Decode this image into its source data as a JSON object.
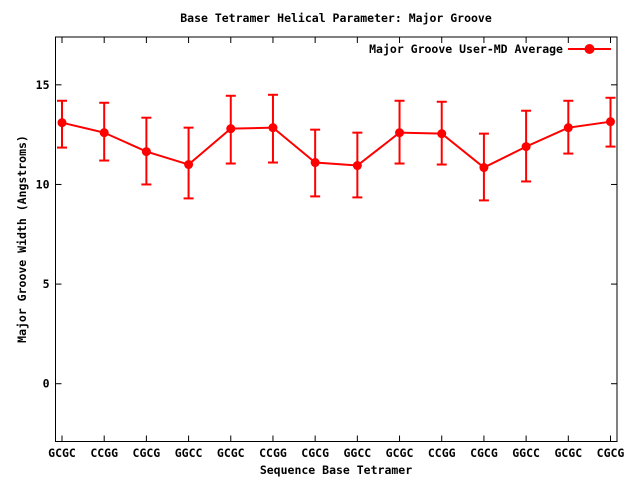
{
  "page": {
    "background": "#ffffff"
  },
  "chart_data": {
    "type": "line",
    "title": "Base Tetramer Helical Parameter: Major Groove",
    "xlabel": "Sequence Base Tetramer",
    "ylabel": "Major Groove Width (Angstroms)",
    "legend": {
      "label": "Major Groove User-MD Average",
      "position": "top-right-inside",
      "marker": "filled-circle-on-line"
    },
    "series_color": "#ff0000",
    "axis_color": "#000000",
    "grid": false,
    "marker": "filled-circle",
    "error_bars": true,
    "categories": [
      "GCGC",
      "CCGG",
      "CGCG",
      "GGCC",
      "GCGC",
      "CCGG",
      "CGCG",
      "GGCC",
      "GCGC",
      "CCGG",
      "CGCG",
      "GGCC",
      "GCGC",
      "CGCG"
    ],
    "values": [
      13.1,
      12.6,
      11.65,
      11.0,
      12.8,
      12.85,
      11.1,
      10.95,
      12.6,
      12.55,
      10.85,
      11.9,
      12.85,
      13.15
    ],
    "error_low": [
      11.85,
      11.2,
      10.0,
      9.3,
      11.05,
      11.1,
      9.4,
      9.35,
      11.05,
      11.0,
      9.2,
      10.15,
      11.55,
      11.9
    ],
    "error_high": [
      14.2,
      14.1,
      13.35,
      12.85,
      14.45,
      14.5,
      12.75,
      12.6,
      14.2,
      14.15,
      12.55,
      13.7,
      14.2,
      14.35
    ],
    "yticks": [
      0,
      5,
      10,
      15
    ],
    "ylim": [
      -2.9,
      17.4
    ]
  }
}
